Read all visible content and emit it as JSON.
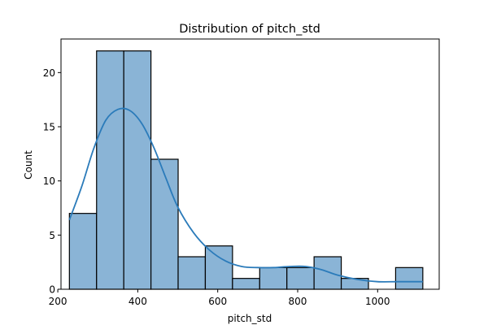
{
  "chart_data": {
    "type": "bar",
    "title": "Distribution of pitch_std",
    "xlabel": "pitch_std",
    "ylabel": "Count",
    "xlim": [
      208,
      1154
    ],
    "ylim": [
      0,
      23.1
    ],
    "xticks": [
      200,
      400,
      600,
      800,
      1000
    ],
    "yticks": [
      0,
      5,
      10,
      15,
      20
    ],
    "grid": false,
    "bar_color": "#8ab4d6",
    "edge_color": "#000000",
    "kde_color": "#2b7bba",
    "bins": [
      {
        "x0": 229,
        "x1": 297,
        "count": 7
      },
      {
        "x0": 297,
        "x1": 365,
        "count": 22
      },
      {
        "x0": 365,
        "x1": 433,
        "count": 22
      },
      {
        "x0": 433,
        "x1": 501,
        "count": 12
      },
      {
        "x0": 501,
        "x1": 569,
        "count": 3
      },
      {
        "x0": 569,
        "x1": 637,
        "count": 4
      },
      {
        "x0": 637,
        "x1": 705,
        "count": 1
      },
      {
        "x0": 705,
        "x1": 773,
        "count": 2
      },
      {
        "x0": 773,
        "x1": 841,
        "count": 2
      },
      {
        "x0": 841,
        "x1": 909,
        "count": 3
      },
      {
        "x0": 909,
        "x1": 977,
        "count": 1
      },
      {
        "x0": 977,
        "x1": 1045,
        "count": 0
      },
      {
        "x0": 1045,
        "x1": 1113,
        "count": 2
      }
    ],
    "kde": {
      "x": [
        229,
        260,
        290,
        320,
        350,
        380,
        410,
        440,
        470,
        500,
        540,
        580,
        620,
        660,
        700,
        740,
        780,
        820,
        860,
        900,
        950,
        1000,
        1050,
        1113
      ],
      "y": [
        6.4,
        9.5,
        13.0,
        15.6,
        16.6,
        16.5,
        15.3,
        13.1,
        10.3,
        7.6,
        5.2,
        3.6,
        2.6,
        2.1,
        2.0,
        2.0,
        2.1,
        2.1,
        1.8,
        1.3,
        0.9,
        0.7,
        0.7,
        0.7
      ]
    }
  }
}
